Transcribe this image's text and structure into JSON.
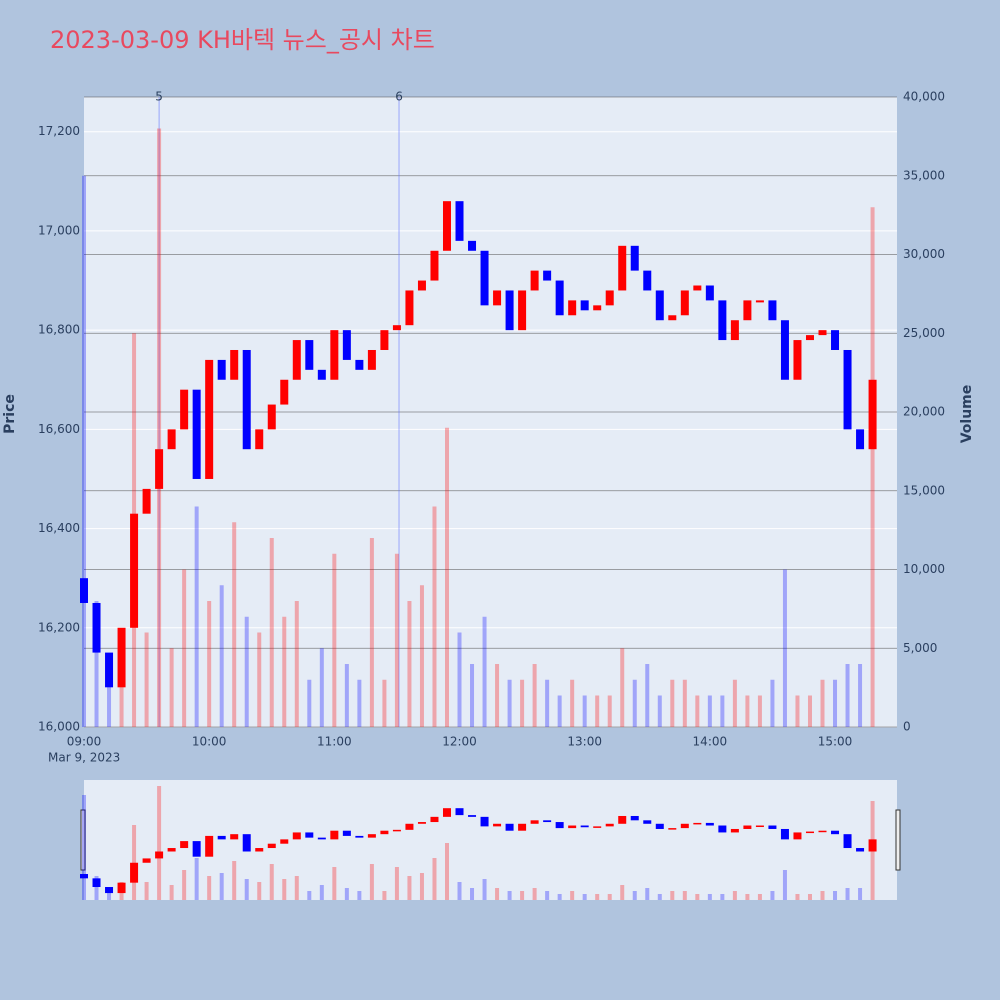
{
  "chart_data": {
    "type": "candlestick",
    "title": "2023-03-09 KH바텍 뉴스_공시 차트",
    "ylabel": "Price",
    "y2label": "Volume",
    "date_label": "Mar 9, 2023",
    "up_color": "#ff0000",
    "down_color": "#0000ff",
    "x": [
      "09:00",
      "09:06",
      "09:12",
      "09:18",
      "09:24",
      "09:30",
      "09:36",
      "09:42",
      "09:48",
      "09:54",
      "10:00",
      "10:06",
      "10:12",
      "10:18",
      "10:24",
      "10:30",
      "10:36",
      "10:42",
      "10:48",
      "10:54",
      "11:00",
      "11:06",
      "11:12",
      "11:18",
      "11:24",
      "11:30",
      "11:36",
      "11:42",
      "11:48",
      "11:54",
      "12:00",
      "12:06",
      "12:12",
      "12:18",
      "12:24",
      "12:30",
      "12:36",
      "12:42",
      "12:48",
      "12:54",
      "13:00",
      "13:06",
      "13:12",
      "13:18",
      "13:24",
      "13:30",
      "13:36",
      "13:42",
      "13:48",
      "13:54",
      "14:00",
      "14:06",
      "14:12",
      "14:18",
      "14:24",
      "14:30",
      "14:36",
      "14:42",
      "14:48",
      "14:54",
      "15:00",
      "15:06",
      "15:12",
      "15:18"
    ],
    "open": [
      16300,
      16250,
      16150,
      16080,
      16200,
      16430,
      16480,
      16560,
      16600,
      16680,
      16500,
      16740,
      16700,
      16760,
      16560,
      16600,
      16650,
      16700,
      16780,
      16720,
      16700,
      16800,
      16740,
      16720,
      16760,
      16800,
      16810,
      16880,
      16900,
      16960,
      17060,
      16980,
      16960,
      16850,
      16880,
      16800,
      16880,
      16920,
      16900,
      16830,
      16860,
      16840,
      16850,
      16880,
      16970,
      16920,
      16880,
      16820,
      16830,
      16880,
      16890,
      16860,
      16780,
      16820,
      16860,
      16860,
      16820,
      16700,
      16780,
      16790,
      16800,
      16760,
      16600,
      16560
    ],
    "close": [
      16250,
      16150,
      16080,
      16200,
      16430,
      16480,
      16560,
      16600,
      16680,
      16500,
      16740,
      16700,
      16760,
      16560,
      16600,
      16650,
      16700,
      16780,
      16720,
      16700,
      16800,
      16740,
      16720,
      16760,
      16800,
      16810,
      16880,
      16900,
      16960,
      17060,
      16980,
      16960,
      16850,
      16880,
      16800,
      16880,
      16920,
      16900,
      16830,
      16860,
      16840,
      16850,
      16880,
      16970,
      16920,
      16880,
      16820,
      16830,
      16880,
      16890,
      16860,
      16780,
      16820,
      16860,
      16860,
      16820,
      16700,
      16780,
      16790,
      16800,
      16760,
      16600,
      16560,
      16700
    ],
    "volume": [
      35000,
      8000,
      4000,
      6000,
      25000,
      6000,
      38000,
      5000,
      10000,
      14000,
      8000,
      9000,
      13000,
      7000,
      6000,
      12000,
      7000,
      8000,
      3000,
      5000,
      11000,
      4000,
      3000,
      12000,
      3000,
      11000,
      8000,
      9000,
      14000,
      19000,
      6000,
      4000,
      7000,
      4000,
      3000,
      3000,
      4000,
      3000,
      2000,
      3000,
      2000,
      2000,
      2000,
      5000,
      3000,
      4000,
      2000,
      3000,
      3000,
      2000,
      2000,
      2000,
      3000,
      2000,
      2000,
      3000,
      10000,
      2000,
      2000,
      3000,
      3000,
      4000,
      4000,
      33000
    ],
    "ylim": [
      16000,
      17270
    ],
    "yticks": [
      {
        "value": 16000,
        "label": "16,000"
      },
      {
        "value": 16200,
        "label": "16,200"
      },
      {
        "value": 16400,
        "label": "16,400"
      },
      {
        "value": 16600,
        "label": "16,600"
      },
      {
        "value": 16800,
        "label": "16,800"
      },
      {
        "value": 17000,
        "label": "17,000"
      },
      {
        "value": 17200,
        "label": "17,200"
      }
    ],
    "y2lim": [
      0,
      40000
    ],
    "y2ticks": [
      0,
      {
        "value": 5000,
        "label": "5,000"
      },
      {
        "value": 10000,
        "label": "10,000"
      },
      {
        "value": 15000,
        "label": "15,000"
      },
      {
        "value": 20000,
        "label": "20,000"
      },
      {
        "value": 25000,
        "label": "25,000"
      },
      {
        "value": 30000,
        "label": "30,000"
      },
      {
        "value": 35000,
        "label": "35,000"
      },
      {
        "value": 40000,
        "label": "40,000"
      }
    ],
    "xticks": [
      "09:00",
      "10:00",
      "11:00",
      "12:00",
      "13:00",
      "14:00",
      "15:00"
    ],
    "annotations": [
      {
        "x": "09:36",
        "label": "5"
      },
      {
        "x": "11:31",
        "label": "6"
      }
    ]
  }
}
